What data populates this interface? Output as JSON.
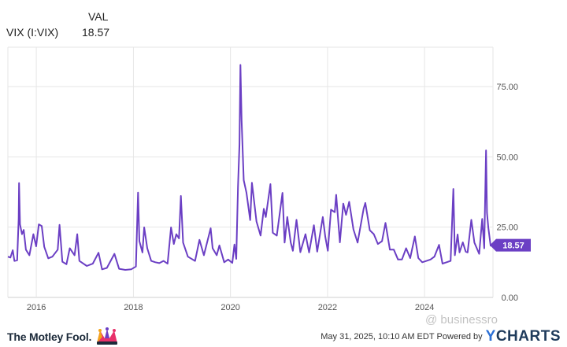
{
  "legend": {
    "header": "VAL",
    "series_name": "VIX (I:VIX)",
    "series_value": "18.57"
  },
  "footer": {
    "brand": "The Motley Fool.",
    "timestamp": "May 31, 2025, 10:10 AM EDT",
    "powered_by": "Powered by",
    "ycharts_y": "Y",
    "ycharts_rest": "CHARTS"
  },
  "watermark": "@ businessro",
  "colors": {
    "line": "#6b3fc4",
    "grid": "#e6e6e6",
    "badge": "#6b3fc4",
    "axis_text": "#555555"
  },
  "chart_data": {
    "type": "line",
    "title": "",
    "xlabel": "",
    "ylabel": "",
    "xlim": [
      "2015-06-01",
      "2025-05-30"
    ],
    "ylim": [
      0,
      89
    ],
    "x_ticks": [
      "2016",
      "2018",
      "2020",
      "2022",
      "2024"
    ],
    "y_ticks": [
      "0.00",
      "25.00",
      "50.00",
      "75.00"
    ],
    "last_value_label": "18.57",
    "grid": true,
    "series": [
      {
        "name": "VIX (I:VIX)",
        "points": [
          [
            "2015-06-01",
            14.5
          ],
          [
            "2015-06-20",
            14.2
          ],
          [
            "2015-07-08",
            16.8
          ],
          [
            "2015-07-20",
            13.0
          ],
          [
            "2015-08-10",
            13.2
          ],
          [
            "2015-08-21",
            28.0
          ],
          [
            "2015-08-24",
            40.7
          ],
          [
            "2015-08-31",
            26.0
          ],
          [
            "2015-09-15",
            22.5
          ],
          [
            "2015-09-28",
            24.0
          ],
          [
            "2015-10-15",
            17.0
          ],
          [
            "2015-11-10",
            15.0
          ],
          [
            "2015-12-10",
            22.5
          ],
          [
            "2015-12-31",
            18.2
          ],
          [
            "2016-01-20",
            26.0
          ],
          [
            "2016-02-11",
            25.4
          ],
          [
            "2016-03-01",
            18.0
          ],
          [
            "2016-03-31",
            13.9
          ],
          [
            "2016-05-01",
            14.5
          ],
          [
            "2016-06-10",
            17.0
          ],
          [
            "2016-06-24",
            25.8
          ],
          [
            "2016-07-15",
            12.7
          ],
          [
            "2016-08-15",
            11.8
          ],
          [
            "2016-09-09",
            17.5
          ],
          [
            "2016-10-15",
            15.0
          ],
          [
            "2016-11-04",
            22.5
          ],
          [
            "2016-11-20",
            13.0
          ],
          [
            "2017-01-15",
            11.2
          ],
          [
            "2017-03-01",
            12.0
          ],
          [
            "2017-04-13",
            15.9
          ],
          [
            "2017-05-10",
            10.0
          ],
          [
            "2017-06-15",
            10.5
          ],
          [
            "2017-08-11",
            15.5
          ],
          [
            "2017-09-15",
            10.2
          ],
          [
            "2017-11-01",
            9.8
          ],
          [
            "2017-12-15",
            10.0
          ],
          [
            "2018-01-20",
            11.0
          ],
          [
            "2018-02-05",
            37.3
          ],
          [
            "2018-02-15",
            20.0
          ],
          [
            "2018-03-10",
            16.0
          ],
          [
            "2018-03-23",
            24.9
          ],
          [
            "2018-04-15",
            17.5
          ],
          [
            "2018-05-15",
            13.0
          ],
          [
            "2018-06-15",
            12.5
          ],
          [
            "2018-07-15",
            12.2
          ],
          [
            "2018-08-15",
            13.0
          ],
          [
            "2018-09-15",
            12.0
          ],
          [
            "2018-10-11",
            24.9
          ],
          [
            "2018-11-01",
            19.0
          ],
          [
            "2018-11-20",
            22.5
          ],
          [
            "2018-12-10",
            21.0
          ],
          [
            "2018-12-24",
            36.1
          ],
          [
            "2019-01-10",
            19.5
          ],
          [
            "2019-02-15",
            14.5
          ],
          [
            "2019-04-10",
            13.0
          ],
          [
            "2019-05-13",
            20.5
          ],
          [
            "2019-06-15",
            15.0
          ],
          [
            "2019-08-05",
            24.6
          ],
          [
            "2019-08-20",
            17.5
          ],
          [
            "2019-09-20",
            15.0
          ],
          [
            "2019-10-10",
            18.5
          ],
          [
            "2019-11-15",
            12.5
          ],
          [
            "2019-12-15",
            13.5
          ],
          [
            "2020-01-15",
            12.3
          ],
          [
            "2020-01-31",
            18.8
          ],
          [
            "2020-02-14",
            13.7
          ],
          [
            "2020-02-27",
            39.2
          ],
          [
            "2020-03-09",
            54.5
          ],
          [
            "2020-03-16",
            82.7
          ],
          [
            "2020-03-25",
            63.0
          ],
          [
            "2020-04-10",
            41.7
          ],
          [
            "2020-05-01",
            37.2
          ],
          [
            "2020-05-29",
            27.5
          ],
          [
            "2020-06-11",
            40.8
          ],
          [
            "2020-07-15",
            27.0
          ],
          [
            "2020-08-15",
            22.0
          ],
          [
            "2020-09-08",
            31.5
          ],
          [
            "2020-09-23",
            28.6
          ],
          [
            "2020-10-28",
            40.3
          ],
          [
            "2020-11-15",
            23.0
          ],
          [
            "2020-12-15",
            22.0
          ],
          [
            "2021-01-27",
            37.2
          ],
          [
            "2021-02-12",
            19.5
          ],
          [
            "2021-03-04",
            28.6
          ],
          [
            "2021-03-30",
            19.5
          ],
          [
            "2021-04-15",
            16.6
          ],
          [
            "2021-05-12",
            27.6
          ],
          [
            "2021-06-10",
            16.1
          ],
          [
            "2021-07-19",
            22.5
          ],
          [
            "2021-08-15",
            16.0
          ],
          [
            "2021-09-20",
            25.7
          ],
          [
            "2021-10-15",
            16.3
          ],
          [
            "2021-11-26",
            28.6
          ],
          [
            "2021-12-15",
            21.5
          ],
          [
            "2022-01-03",
            16.6
          ],
          [
            "2022-01-27",
            31.2
          ],
          [
            "2022-02-24",
            30.3
          ],
          [
            "2022-03-07",
            36.5
          ],
          [
            "2022-04-04",
            19.6
          ],
          [
            "2022-04-29",
            33.4
          ],
          [
            "2022-05-20",
            29.4
          ],
          [
            "2022-06-13",
            34.0
          ],
          [
            "2022-07-15",
            24.2
          ],
          [
            "2022-08-15",
            19.5
          ],
          [
            "2022-09-30",
            31.6
          ],
          [
            "2022-10-12",
            33.6
          ],
          [
            "2022-11-15",
            23.9
          ],
          [
            "2022-12-15",
            22.5
          ],
          [
            "2023-01-15",
            19.0
          ],
          [
            "2023-02-15",
            20.0
          ],
          [
            "2023-03-13",
            26.5
          ],
          [
            "2023-04-15",
            17.0
          ],
          [
            "2023-05-15",
            17.0
          ],
          [
            "2023-06-15",
            13.5
          ],
          [
            "2023-07-15",
            13.5
          ],
          [
            "2023-08-15",
            17.5
          ],
          [
            "2023-09-15",
            14.0
          ],
          [
            "2023-10-20",
            21.7
          ],
          [
            "2023-11-15",
            14.0
          ],
          [
            "2023-12-15",
            12.5
          ],
          [
            "2024-01-15",
            13.0
          ],
          [
            "2024-02-15",
            13.5
          ],
          [
            "2024-03-15",
            14.5
          ],
          [
            "2024-04-19",
            18.7
          ],
          [
            "2024-05-15",
            12.0
          ],
          [
            "2024-06-15",
            12.5
          ],
          [
            "2024-07-15",
            13.0
          ],
          [
            "2024-08-05",
            38.6
          ],
          [
            "2024-08-16",
            15.0
          ],
          [
            "2024-09-06",
            22.4
          ],
          [
            "2024-09-20",
            16.0
          ],
          [
            "2024-10-15",
            19.6
          ],
          [
            "2024-11-06",
            16.3
          ],
          [
            "2024-11-20",
            16.0
          ],
          [
            "2024-12-18",
            27.6
          ],
          [
            "2025-01-10",
            19.5
          ],
          [
            "2025-02-15",
            15.5
          ],
          [
            "2025-03-10",
            27.9
          ],
          [
            "2025-03-25",
            17.5
          ],
          [
            "2025-04-08",
            52.3
          ],
          [
            "2025-04-15",
            30.1
          ],
          [
            "2025-04-25",
            24.8
          ],
          [
            "2025-05-12",
            18.4
          ],
          [
            "2025-05-30",
            18.57
          ]
        ]
      }
    ]
  }
}
